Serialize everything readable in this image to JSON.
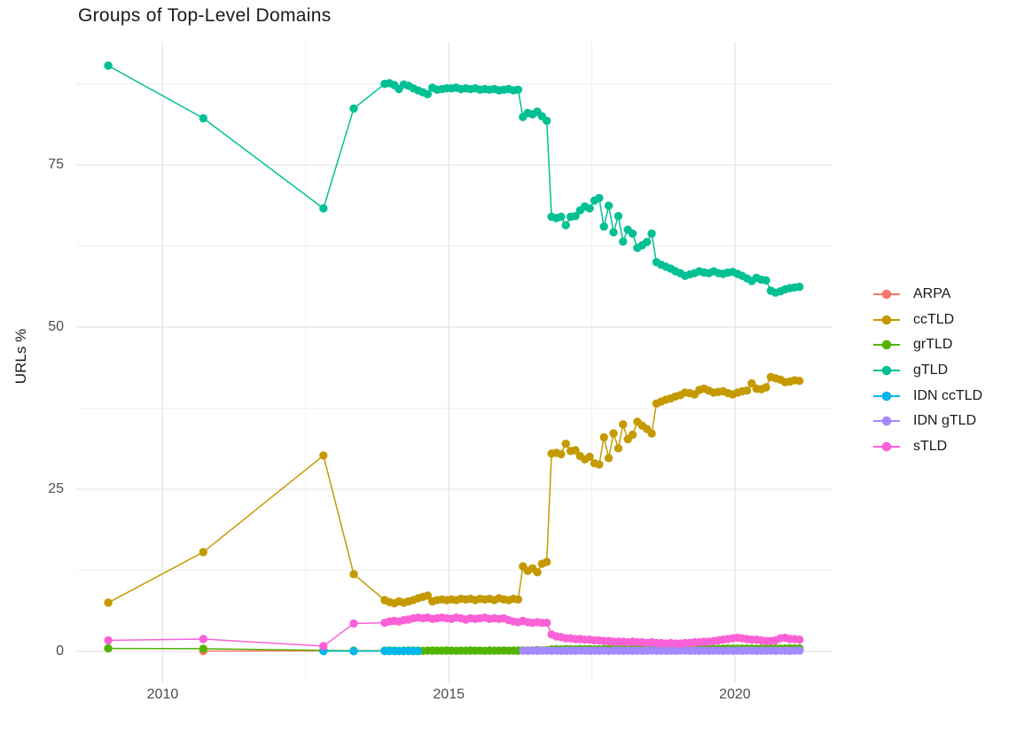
{
  "chart_data": {
    "type": "line",
    "title": "Groups of Top-Level Domains",
    "ylabel": "URLs %",
    "xlabel": "",
    "legend_position": "right",
    "x_domain": [
      2008.49,
      2021.69
    ],
    "y_domain": [
      -4.8,
      94.0
    ],
    "x_ticks": [
      {
        "value": 2010,
        "label": "2010"
      },
      {
        "value": 2015,
        "label": "2015"
      },
      {
        "value": 2020,
        "label": "2020"
      }
    ],
    "y_ticks": [
      {
        "value": 0,
        "label": "0"
      },
      {
        "value": 25,
        "label": "25"
      },
      {
        "value": 50,
        "label": "50"
      },
      {
        "value": 75,
        "label": "75"
      }
    ],
    "grid": {
      "x_minor": [
        2012.5,
        2017.5
      ],
      "y_minor": [
        12.5,
        37.5,
        62.5,
        87.5
      ],
      "major_color": "#E3E3E3",
      "minor_color": "#EFEFEF",
      "background": "#ffffff"
    },
    "series": [
      {
        "name": "ARPA",
        "color": "#F8766D",
        "head": {
          "x": [
            2010.71,
            2012.81
          ],
          "y": [
            0.05,
            0.08
          ]
        }
      },
      {
        "name": "ccTLD",
        "color": "#C49A00",
        "head": {
          "x": [
            2009.05,
            2010.71,
            2012.81,
            2013.34
          ],
          "y": [
            7.5,
            15.3,
            30.2,
            11.9
          ]
        },
        "tail": {
          "x0": 2013.88,
          "dx": 0.0833,
          "y": [
            7.9,
            7.6,
            7.4,
            7.7,
            7.5,
            7.7,
            7.9,
            8.2,
            8.4,
            8.6,
            7.7,
            7.9,
            8.0,
            7.9,
            8.0,
            7.9,
            8.1,
            8.0,
            8.1,
            7.9,
            8.1,
            8.0,
            8.1,
            7.9,
            8.2,
            8.0,
            7.9,
            8.1,
            8.0,
            13.1,
            12.4,
            12.8,
            12.2,
            13.5,
            13.8,
            30.5,
            30.6,
            30.4,
            32.0,
            30.9,
            31.0,
            30.1,
            29.6,
            30.0,
            29.0,
            28.8,
            33.0,
            29.8,
            33.6,
            31.3,
            35.0,
            32.7,
            33.4,
            35.4,
            34.8,
            34.3,
            33.6,
            38.2,
            38.5,
            38.8,
            39.0,
            39.3,
            39.5,
            39.9,
            39.8,
            39.6,
            40.3,
            40.5,
            40.2,
            39.9,
            40.0,
            40.1,
            39.8,
            39.6,
            39.9,
            40.1,
            40.2,
            41.3,
            40.5,
            40.4,
            40.7,
            42.3,
            42.1,
            41.9,
            41.5,
            41.6,
            41.8,
            41.7
          ]
        }
      },
      {
        "name": "grTLD",
        "color": "#53B400",
        "head": {
          "x": [
            2009.05,
            2010.71,
            2012.81,
            2013.34
          ],
          "y": [
            0.45,
            0.4,
            0.15,
            0.1
          ]
        },
        "tail": {
          "x0": 2013.88,
          "dx": 0.0833,
          "y": [
            0.1,
            0.12,
            0.1,
            0.08,
            0.1,
            0.12,
            0.1,
            0.1,
            0.08,
            0.1,
            0.12,
            0.1,
            0.1,
            0.12,
            0.1,
            0.08,
            0.1,
            0.1,
            0.12,
            0.1,
            0.1,
            0.08,
            0.12,
            0.1,
            0.1,
            0.12,
            0.1,
            0.1,
            0.12,
            0.15,
            0.12,
            0.15,
            0.18,
            0.15,
            0.2,
            0.3,
            0.32,
            0.3,
            0.35,
            0.32,
            0.3,
            0.35,
            0.32,
            0.35,
            0.3,
            0.32,
            0.35,
            0.38,
            0.35,
            0.32,
            0.35,
            0.38,
            0.35,
            0.4,
            0.38,
            0.35,
            0.4,
            0.4,
            0.38,
            0.4,
            0.42,
            0.4,
            0.38,
            0.4,
            0.42,
            0.4,
            0.4,
            0.42,
            0.4,
            0.38,
            0.4,
            0.42,
            0.44,
            0.42,
            0.4,
            0.42,
            0.44,
            0.42,
            0.4,
            0.42,
            0.44,
            0.46,
            0.44,
            0.42,
            0.44,
            0.46,
            0.45,
            0.45
          ]
        }
      },
      {
        "name": "gTLD",
        "color": "#00C094",
        "head": {
          "x": [
            2009.05,
            2010.71,
            2012.81,
            2013.34
          ],
          "y": [
            90.3,
            82.2,
            68.3,
            83.7
          ]
        },
        "tail": {
          "x0": 2013.88,
          "dx": 0.0833,
          "y": [
            87.5,
            87.6,
            87.3,
            86.7,
            87.4,
            87.2,
            86.8,
            86.5,
            86.2,
            85.9,
            86.9,
            86.6,
            86.7,
            86.8,
            86.8,
            86.9,
            86.7,
            86.8,
            86.7,
            86.8,
            86.6,
            86.7,
            86.6,
            86.7,
            86.5,
            86.6,
            86.7,
            86.5,
            86.6,
            82.4,
            83.0,
            82.8,
            83.2,
            82.5,
            81.8,
            67.0,
            66.8,
            67.0,
            65.7,
            67.0,
            67.1,
            68.0,
            68.6,
            68.3,
            69.5,
            69.9,
            65.5,
            68.7,
            64.6,
            67.1,
            63.2,
            65.0,
            64.4,
            62.2,
            62.6,
            63.1,
            64.4,
            60.0,
            59.6,
            59.3,
            59.0,
            58.6,
            58.3,
            57.9,
            58.1,
            58.3,
            58.6,
            58.4,
            58.3,
            58.6,
            58.3,
            58.2,
            58.4,
            58.5,
            58.2,
            57.9,
            57.5,
            57.1,
            57.6,
            57.3,
            57.2,
            55.6,
            55.3,
            55.5,
            55.8,
            56.0,
            56.1,
            56.2
          ]
        }
      },
      {
        "name": "IDN ccTLD",
        "color": "#00B6EB",
        "head": {
          "x": [
            2012.81,
            2013.34,
            2013.88,
            2013.96,
            2014.05,
            2014.13,
            2014.21,
            2014.3,
            2014.38,
            2014.46
          ],
          "y": [
            0.05,
            0.03,
            0.05,
            0.05,
            0.04,
            0.05,
            0.05,
            0.04,
            0.05,
            0.05
          ]
        }
      },
      {
        "name": "IDN gTLD",
        "color": "#A58AFF",
        "tail": {
          "x0": 2016.3,
          "dx": 0.0833,
          "y": [
            0.1,
            0.08,
            0.1,
            0.08,
            0.1,
            0.1,
            0.08,
            0.1,
            0.08,
            0.08,
            0.1,
            0.08,
            0.1,
            0.1,
            0.08,
            0.1,
            0.08,
            0.1,
            0.08,
            0.1,
            0.1,
            0.08,
            0.1,
            0.08,
            0.1,
            0.08,
            0.1,
            0.1,
            0.08,
            0.1,
            0.08,
            0.1,
            0.08,
            0.1,
            0.1,
            0.08,
            0.1,
            0.08,
            0.1,
            0.08,
            0.1,
            0.1,
            0.08,
            0.1,
            0.08,
            0.1,
            0.08,
            0.1,
            0.1,
            0.08,
            0.1,
            0.08,
            0.1,
            0.08,
            0.1,
            0.1,
            0.08,
            0.1,
            0.1
          ]
        }
      },
      {
        "name": "sTLD",
        "color": "#FB61D7",
        "head": {
          "x": [
            2009.05,
            2010.71,
            2012.81,
            2013.34
          ],
          "y": [
            1.7,
            1.9,
            0.8,
            4.3
          ]
        },
        "tail": {
          "x0": 2013.88,
          "dx": 0.0833,
          "y": [
            4.4,
            4.6,
            4.7,
            4.6,
            4.8,
            4.9,
            5.1,
            5.2,
            5.1,
            5.2,
            5.0,
            5.1,
            5.2,
            5.1,
            5.0,
            5.2,
            5.1,
            4.9,
            5.1,
            5.0,
            5.1,
            5.2,
            5.0,
            5.1,
            5.0,
            5.1,
            4.8,
            4.6,
            4.5,
            4.7,
            4.5,
            4.4,
            4.5,
            4.4,
            4.4,
            2.6,
            2.3,
            2.2,
            2.0,
            2.0,
            1.9,
            1.9,
            1.8,
            1.8,
            1.7,
            1.7,
            1.6,
            1.6,
            1.5,
            1.5,
            1.5,
            1.4,
            1.5,
            1.4,
            1.4,
            1.3,
            1.4,
            1.3,
            1.3,
            1.2,
            1.3,
            1.2,
            1.2,
            1.3,
            1.3,
            1.4,
            1.4,
            1.5,
            1.5,
            1.6,
            1.7,
            1.8,
            1.9,
            2.0,
            2.1,
            2.0,
            1.9,
            1.8,
            1.8,
            1.7,
            1.6,
            1.6,
            1.7,
            2.0,
            2.1,
            1.9,
            1.9,
            1.8
          ]
        }
      }
    ]
  }
}
